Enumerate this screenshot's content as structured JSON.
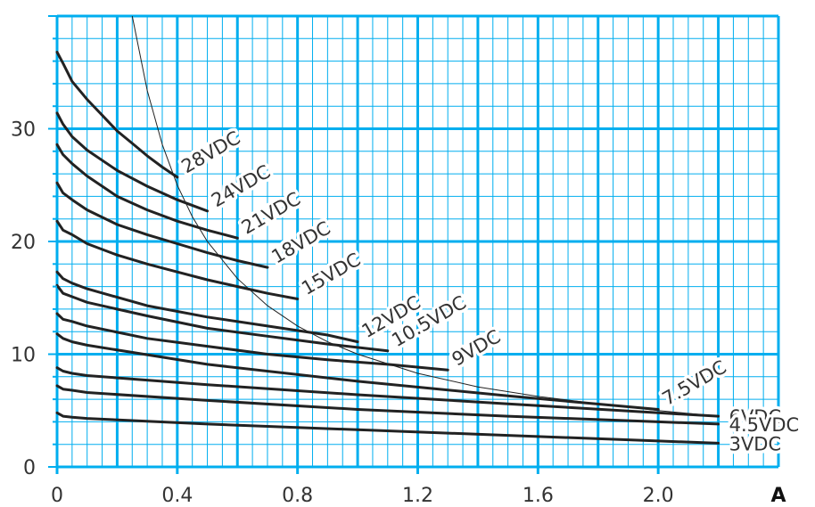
{
  "chart_data": {
    "type": "line",
    "xlabel": "A",
    "ylabel": "",
    "xlim": [
      0,
      2.4
    ],
    "ylim": [
      0,
      40
    ],
    "x_ticks": [
      "0",
      "0.4",
      "0.8",
      "1.2",
      "1.6",
      "2.0"
    ],
    "x_tick_values": [
      0,
      0.4,
      0.8,
      1.2,
      1.6,
      2.0
    ],
    "y_ticks": [
      "0",
      "10",
      "20",
      "30"
    ],
    "y_tick_values": [
      0,
      10,
      20,
      30
    ],
    "grid": true,
    "colors": {
      "grid": "#00aeef",
      "series": "#222222",
      "limit_curve": "#222222"
    },
    "series": [
      {
        "name": "28VDC",
        "x": [
          0,
          0.02,
          0.05,
          0.1,
          0.15,
          0.2,
          0.25,
          0.3,
          0.35,
          0.4
        ],
        "y": [
          36.8,
          35.8,
          34.2,
          32.6,
          31.2,
          29.8,
          28.7,
          27.6,
          26.6,
          25.7
        ]
      },
      {
        "name": "24VDC",
        "x": [
          0,
          0.02,
          0.05,
          0.1,
          0.2,
          0.3,
          0.4,
          0.5
        ],
        "y": [
          31.4,
          30.4,
          29.3,
          28.1,
          26.3,
          24.9,
          23.7,
          22.7
        ]
      },
      {
        "name": "21VDC",
        "x": [
          0,
          0.02,
          0.05,
          0.1,
          0.2,
          0.3,
          0.4,
          0.5,
          0.6
        ],
        "y": [
          28.6,
          27.7,
          26.9,
          25.8,
          24.0,
          22.8,
          21.8,
          21.0,
          20.3
        ]
      },
      {
        "name": "18VDC",
        "x": [
          0,
          0.02,
          0.05,
          0.1,
          0.2,
          0.3,
          0.4,
          0.5,
          0.6,
          0.7
        ],
        "y": [
          25.2,
          24.3,
          23.7,
          22.8,
          21.5,
          20.6,
          19.8,
          19.0,
          18.3,
          17.7
        ]
      },
      {
        "name": "15VDC",
        "x": [
          0,
          0.02,
          0.05,
          0.1,
          0.2,
          0.3,
          0.4,
          0.5,
          0.6,
          0.7,
          0.8
        ],
        "y": [
          21.8,
          21.0,
          20.6,
          19.8,
          18.8,
          18.0,
          17.3,
          16.6,
          16.0,
          15.4,
          14.9
        ]
      },
      {
        "name": "12VDC",
        "x": [
          0,
          0.02,
          0.05,
          0.1,
          0.3,
          0.5,
          0.7,
          0.9,
          1.0
        ],
        "y": [
          17.3,
          16.7,
          16.3,
          15.8,
          14.3,
          13.3,
          12.5,
          11.7,
          11.1
        ]
      },
      {
        "name": "10.5VDC",
        "x": [
          0,
          0.02,
          0.05,
          0.1,
          0.3,
          0.5,
          0.7,
          0.9,
          1.1
        ],
        "y": [
          16.1,
          15.4,
          15.1,
          14.6,
          13.4,
          12.3,
          11.6,
          10.9,
          10.3
        ]
      },
      {
        "name": "9VDC",
        "x": [
          0,
          0.02,
          0.05,
          0.1,
          0.3,
          0.5,
          0.7,
          0.9,
          1.1,
          1.3
        ],
        "y": [
          13.6,
          13.1,
          12.9,
          12.5,
          11.4,
          10.7,
          10.0,
          9.5,
          9.1,
          8.6
        ]
      },
      {
        "name": "7.5VDC",
        "x": [
          0,
          0.02,
          0.05,
          0.1,
          0.5,
          1.0,
          1.5,
          2.0
        ],
        "y": [
          11.8,
          11.4,
          11.1,
          10.8,
          9.1,
          7.6,
          6.3,
          5.1
        ]
      },
      {
        "name": "6VDC",
        "x": [
          0,
          0.02,
          0.05,
          0.1,
          0.5,
          1.0,
          1.5,
          2.0,
          2.2
        ],
        "y": [
          8.8,
          8.5,
          8.3,
          8.1,
          7.3,
          6.4,
          5.6,
          4.8,
          4.5
        ]
      },
      {
        "name": "4.5VDC",
        "x": [
          0,
          0.02,
          0.05,
          0.1,
          0.5,
          1.0,
          1.5,
          2.0,
          2.2
        ],
        "y": [
          7.2,
          6.9,
          6.8,
          6.6,
          5.9,
          5.1,
          4.5,
          4.0,
          3.8
        ]
      },
      {
        "name": "3VDC",
        "x": [
          0,
          0.02,
          0.05,
          0.1,
          0.5,
          1.0,
          1.5,
          2.0,
          2.2
        ],
        "y": [
          4.8,
          4.5,
          4.4,
          4.3,
          3.8,
          3.3,
          2.8,
          2.3,
          2.1
        ]
      }
    ],
    "limit_curve": {
      "x": [
        0.25,
        0.3,
        0.35,
        0.4,
        0.45,
        0.5,
        0.6,
        0.7,
        0.8,
        0.9,
        1.0,
        1.2,
        1.4,
        1.6,
        1.8,
        2.0,
        2.2
      ],
      "y": [
        40,
        33.4,
        28.6,
        25.0,
        22.2,
        20.0,
        16.7,
        14.3,
        12.5,
        11.1,
        10.0,
        8.3,
        7.1,
        6.25,
        5.6,
        5.0,
        4.5
      ]
    }
  }
}
